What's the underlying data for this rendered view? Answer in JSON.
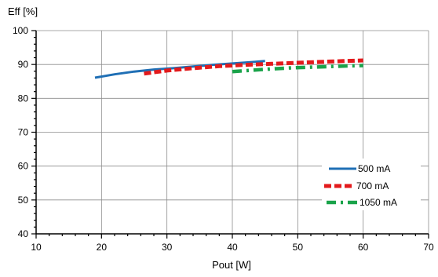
{
  "chart_data": {
    "type": "line",
    "ylabel": "Eff [%]",
    "xlabel": "Pout [W]",
    "xlim": [
      10,
      70
    ],
    "ylim": [
      40,
      100
    ],
    "x_ticks": [
      "10",
      "20",
      "30",
      "40",
      "50",
      "60",
      "70"
    ],
    "y_ticks": [
      "40",
      "50",
      "60",
      "70",
      "80",
      "90",
      "100"
    ],
    "grid": true,
    "legend_position": "lower-right",
    "series": [
      {
        "name": "500 mA",
        "color": "#1f6fb5",
        "style": "solid",
        "x": [
          19,
          22,
          25,
          28,
          31,
          34,
          37,
          40,
          43,
          45
        ],
        "y": [
          86.1,
          87.1,
          87.9,
          88.5,
          88.9,
          89.4,
          89.9,
          90.3,
          90.7,
          91.0
        ]
      },
      {
        "name": "700 mA",
        "color": "#e31a1c",
        "style": "dashed",
        "x": [
          26.5,
          30,
          34,
          38,
          42,
          46,
          50,
          54,
          57,
          60
        ],
        "y": [
          87.3,
          88.2,
          88.9,
          89.5,
          89.9,
          90.2,
          90.5,
          90.8,
          91.0,
          91.2
        ]
      },
      {
        "name": "1050 mA",
        "color": "#1aa34a",
        "style": "dashdot",
        "x": [
          40,
          43,
          46,
          49,
          52,
          55,
          58,
          60
        ],
        "y": [
          87.9,
          88.3,
          88.7,
          89.0,
          89.2,
          89.4,
          89.6,
          89.7
        ]
      }
    ]
  }
}
